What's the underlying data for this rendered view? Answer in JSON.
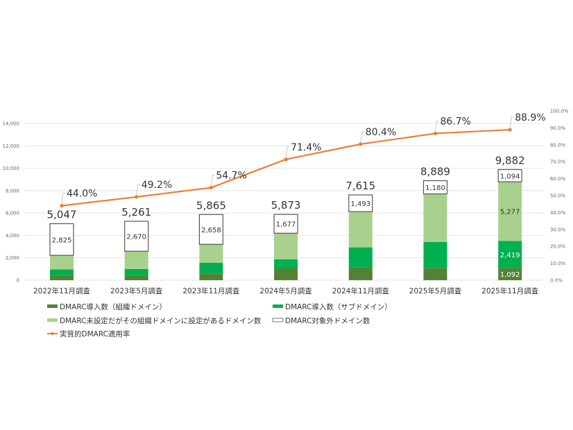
{
  "chart_data": {
    "type": "bar+line",
    "categories": [
      "2022年11月調査",
      "2023年5月調査",
      "2023年11月調査",
      "2024年5月調査",
      "2024年11月調査",
      "2025年5月調査",
      "2025年11月調査"
    ],
    "series": [
      {
        "name": "DMARC導入数（組織ドメイン）",
        "color": "#548235",
        "values": [
          413,
          413,
          578,
          1053,
          1157,
          1095,
          1092
        ],
        "labels": [
          null,
          null,
          null,
          null,
          null,
          null,
          "1,092"
        ]
      },
      {
        "name": "DMARC導入数（サブドメイン）",
        "color": "#00b050",
        "values": [
          560,
          580,
          970,
          805,
          1777,
          2312,
          2419
        ],
        "labels": [
          null,
          null,
          null,
          null,
          null,
          null,
          "2,419"
        ]
      },
      {
        "name": "DMARC未設定だがその組織ドメインに設定があるドメイン数",
        "color": "#a9d18e",
        "values": [
          1249,
          1598,
          1659,
          2338,
          3188,
          4302,
          5277
        ],
        "labels": [
          null,
          null,
          null,
          null,
          null,
          null,
          "5,277"
        ]
      },
      {
        "name": "DMARC対象外ドメイン数",
        "color": "#ffffff",
        "values": [
          2825,
          2670,
          2658,
          1677,
          1493,
          1180,
          1094
        ],
        "labels": [
          "2,825",
          "2,670",
          "2,658",
          "1,677",
          "1,493",
          "1,180",
          "1,094"
        ]
      }
    ],
    "totals": [
      "5,047",
      "5,261",
      "5,865",
      "5,873",
      "7,615",
      "8,889",
      "9,882"
    ],
    "line": {
      "name": "実質的DMARC適用率",
      "color": "#ed7d31",
      "values": [
        44.0,
        49.2,
        54.7,
        71.4,
        80.4,
        86.7,
        88.9
      ],
      "labels": [
        "44.0%",
        "49.2%",
        "54.7%",
        "71.4%",
        "80.4%",
        "86.7%",
        "88.9%"
      ]
    },
    "y_left": {
      "range": [
        0,
        14000
      ],
      "ticks": [
        "0",
        "2,000",
        "4,000",
        "6,000",
        "8,000",
        "10,000",
        "12,000",
        "14,000"
      ]
    },
    "y_right": {
      "range": [
        0,
        100
      ],
      "ticks": [
        "0.0%",
        "10.0%",
        "20.0%",
        "30.0%",
        "40.0%",
        "50.0%",
        "60.0%",
        "70.0%",
        "80.0%",
        "90.0%",
        "100.0%"
      ]
    },
    "grid": true,
    "legend_position": "bottom"
  }
}
